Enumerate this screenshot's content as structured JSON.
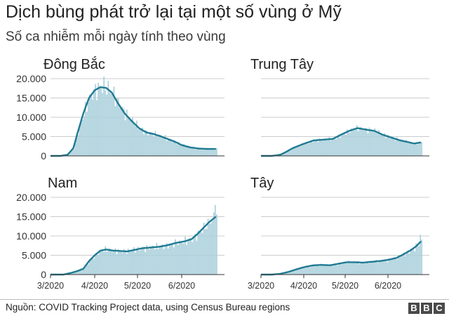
{
  "title": "Dịch bùng phát trở lại tại một số vùng ở Mỹ",
  "subtitle": "Số ca nhiễm mỗi ngày tính theo vùng",
  "source": "Nguồn: COVID Tracking Project data, using Census Bureau regions",
  "logo": [
    "B",
    "B",
    "C"
  ],
  "colors": {
    "bars": "#a9cfdb",
    "line": "#1f7a92",
    "axis": "#333333",
    "grid": "#cccccc"
  },
  "chart_data": [
    {
      "type": "bar",
      "title": "Đông Bắc",
      "xlim": [
        0,
        122
      ],
      "ylim": [
        0,
        20000
      ],
      "yticks": [
        0,
        5000,
        10000,
        15000,
        20000
      ],
      "yticklabels": [
        "0",
        "5.000",
        "10.000",
        "15.000",
        "20.000"
      ],
      "xticks": [],
      "xticklabels": [],
      "profile": [
        [
          0,
          0
        ],
        [
          7,
          0
        ],
        [
          12,
          300
        ],
        [
          16,
          2000
        ],
        [
          19,
          6000
        ],
        [
          23,
          11000
        ],
        [
          27,
          15000
        ],
        [
          31,
          17000
        ],
        [
          35,
          17800
        ],
        [
          39,
          17600
        ],
        [
          43,
          16400
        ],
        [
          47,
          13800
        ],
        [
          52,
          11000
        ],
        [
          57,
          9000
        ],
        [
          62,
          7200
        ],
        [
          67,
          6100
        ],
        [
          72,
          5700
        ],
        [
          77,
          5100
        ],
        [
          82,
          4400
        ],
        [
          87,
          3700
        ],
        [
          92,
          2800
        ],
        [
          98,
          2200
        ],
        [
          104,
          1900
        ],
        [
          110,
          1800
        ],
        [
          116,
          1800
        ]
      ],
      "noise_amp": 0.17,
      "peak": {
        "x": 37,
        "y": 20500
      }
    },
    {
      "type": "bar",
      "title": "Trung Tây",
      "xlim": [
        0,
        122
      ],
      "ylim": [
        0,
        20000
      ],
      "yticks": [
        0,
        5000,
        10000,
        15000,
        20000
      ],
      "yticklabels": [],
      "xticks": [],
      "xticklabels": [],
      "profile": [
        [
          0,
          0
        ],
        [
          8,
          0
        ],
        [
          14,
          300
        ],
        [
          18,
          1000
        ],
        [
          23,
          2000
        ],
        [
          30,
          3000
        ],
        [
          38,
          4000
        ],
        [
          45,
          4200
        ],
        [
          52,
          4400
        ],
        [
          58,
          5500
        ],
        [
          64,
          6500
        ],
        [
          70,
          7200
        ],
        [
          76,
          6800
        ],
        [
          82,
          6500
        ],
        [
          88,
          5500
        ],
        [
          94,
          4800
        ],
        [
          100,
          4100
        ],
        [
          106,
          3600
        ],
        [
          111,
          3200
        ],
        [
          116,
          3500
        ]
      ],
      "noise_amp": 0.14,
      "peak": null
    },
    {
      "type": "bar",
      "title": "Nam",
      "xlim": [
        0,
        122
      ],
      "ylim": [
        0,
        20000
      ],
      "yticks": [
        0,
        5000,
        10000,
        15000,
        20000
      ],
      "yticklabels": [
        "0",
        "5.000",
        "10.000",
        "15.000",
        "20.000"
      ],
      "xticks": [
        0,
        31,
        61,
        92
      ],
      "xticklabels": [
        "3/2020",
        "4/2020",
        "5/2020",
        "6/2020"
      ],
      "profile": [
        [
          0,
          0
        ],
        [
          9,
          0
        ],
        [
          14,
          400
        ],
        [
          18,
          800
        ],
        [
          23,
          1500
        ],
        [
          27,
          3500
        ],
        [
          31,
          5000
        ],
        [
          35,
          6200
        ],
        [
          39,
          6500
        ],
        [
          44,
          6200
        ],
        [
          49,
          6100
        ],
        [
          54,
          6000
        ],
        [
          59,
          6400
        ],
        [
          64,
          6800
        ],
        [
          70,
          7000
        ],
        [
          76,
          7200
        ],
        [
          82,
          7600
        ],
        [
          88,
          8200
        ],
        [
          94,
          8600
        ],
        [
          99,
          9200
        ],
        [
          103,
          10500
        ],
        [
          107,
          12000
        ],
        [
          111,
          13500
        ],
        [
          116,
          15000
        ]
      ],
      "noise_amp": 0.15,
      "peak": {
        "x": 115,
        "y": 18000
      }
    },
    {
      "type": "bar",
      "title": "Tây",
      "xlim": [
        0,
        122
      ],
      "ylim": [
        0,
        20000
      ],
      "yticks": [
        0,
        5000,
        10000,
        15000,
        20000
      ],
      "yticklabels": [],
      "xticks": [
        0,
        31,
        61,
        92
      ],
      "xticklabels": [
        "3/2020",
        "4/2020",
        "5/2020",
        "6/2020"
      ],
      "profile": [
        [
          0,
          0
        ],
        [
          8,
          0
        ],
        [
          14,
          200
        ],
        [
          20,
          700
        ],
        [
          26,
          1400
        ],
        [
          32,
          2000
        ],
        [
          38,
          2400
        ],
        [
          44,
          2500
        ],
        [
          50,
          2400
        ],
        [
          56,
          2800
        ],
        [
          62,
          3200
        ],
        [
          68,
          3200
        ],
        [
          74,
          3100
        ],
        [
          80,
          3300
        ],
        [
          86,
          3500
        ],
        [
          92,
          3800
        ],
        [
          98,
          4300
        ],
        [
          103,
          5200
        ],
        [
          108,
          6200
        ],
        [
          112,
          7200
        ],
        [
          116,
          8600
        ]
      ],
      "noise_amp": 0.15,
      "peak": {
        "x": 115,
        "y": 10300
      }
    }
  ]
}
